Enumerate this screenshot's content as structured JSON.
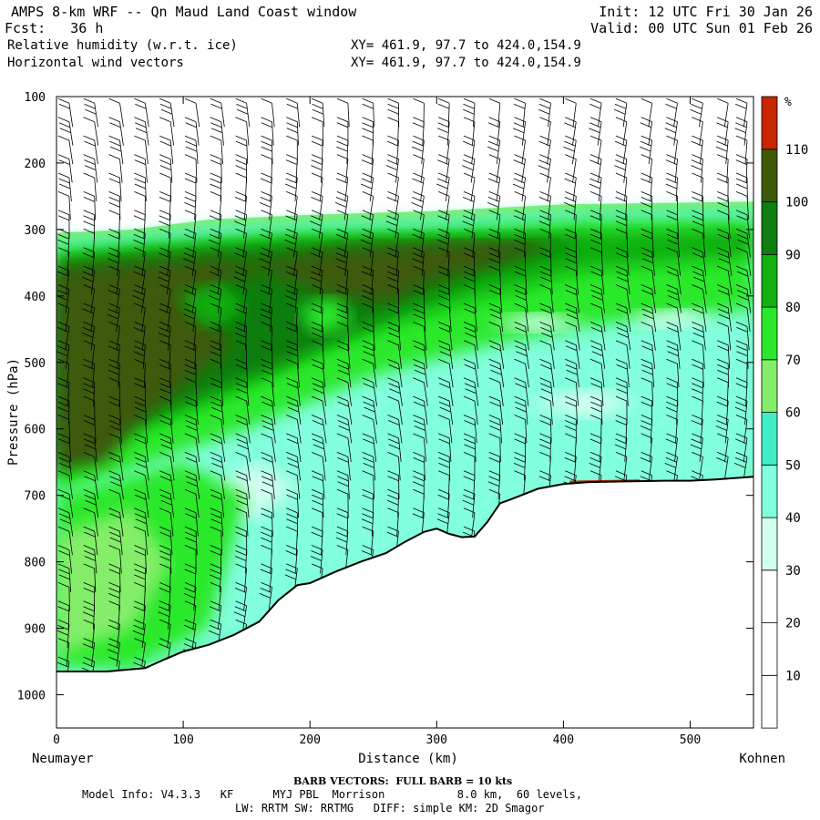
{
  "header": {
    "title": "AMPS 8-km WRF -- Qn Maud Land Coast window",
    "fcst": "Fcst:   36 h",
    "init": "Init: 12 UTC Fri 30 Jan 26",
    "valid": "Valid: 00 UTC Sun 01 Feb 26",
    "field1": "Relative humidity (w.r.t. ice)",
    "field2": "Horizontal wind vectors",
    "xy1": "XY= 461.9, 97.7 to 424.0,154.9",
    "xy2": "XY= 461.9, 97.7 to 424.0,154.9"
  },
  "footer": {
    "barb_note": "BARB VECTORS:  FULL BARB = 10 kts",
    "model_info": "Model Info: V4.3.3   KF      MYJ PBL  Morrison           8.0 km,  60 levels,",
    "model_info2": "LW: RRTM SW: RRTMG   DIFF: simple KM: 2D Smagor"
  },
  "chart_data": {
    "type": "heatmap",
    "title": "Relative humidity (w.r.t. ice)",
    "xlabel": "Distance (km)",
    "ylabel": "Pressure (hPa)",
    "xlim": [
      0,
      550
    ],
    "ylim": [
      1050,
      100
    ],
    "xticks": [
      0,
      100,
      200,
      300,
      400,
      500
    ],
    "yticks": [
      100,
      200,
      300,
      400,
      500,
      600,
      700,
      800,
      900,
      1000
    ],
    "x_endpoints": {
      "left": "Neumayer",
      "right": "Kohnen"
    },
    "colorbar": {
      "unit": "%",
      "levels": [
        10,
        20,
        30,
        40,
        50,
        60,
        70,
        80,
        90,
        100,
        110
      ],
      "colors": [
        "#ffffff",
        "#ffffff",
        "#ffffff",
        "#d2fff0",
        "#82ffdc",
        "#40eec8",
        "#84ee6a",
        "#2ce82c",
        "#10b010",
        "#0f7d0f",
        "#3e5a09",
        "#c82600"
      ]
    },
    "terrain_profile": {
      "x_km": [
        0,
        40,
        70,
        85,
        100,
        120,
        140,
        160,
        175,
        190,
        200,
        220,
        240,
        260,
        275,
        290,
        300,
        310,
        320,
        330,
        340,
        350,
        360,
        380,
        400,
        420,
        450,
        480,
        500,
        520,
        550
      ],
      "surface_hPa": [
        965,
        965,
        960,
        947,
        935,
        925,
        910,
        890,
        858,
        835,
        832,
        815,
        800,
        787,
        770,
        755,
        750,
        758,
        763,
        762,
        740,
        712,
        705,
        690,
        683,
        680,
        679,
        678,
        678,
        676,
        672
      ]
    },
    "humidity_layers": [
      {
        "range_percent": "90-100",
        "location": "upper moist layer, ~300-450 hPa, descending toward 550 hPa near Neumayer"
      },
      {
        "range_percent": "100-110",
        "location": "thick lower-left region, 350-650 hPa near x=0-120 km and a tongue 320-420 hPa near x=220-360 km"
      },
      {
        "range_percent": "30-50",
        "location": "drier mid-levels, 400-700 hPa over x=150-550 km"
      },
      {
        "range_percent": "110+",
        "location": "thin strip near surface around x=410-460 km"
      }
    ],
    "wind_barbs": {
      "full_barb_kts": 10,
      "columns_x_km": [
        10,
        30,
        50,
        70,
        90,
        110,
        130,
        150,
        170,
        190,
        210,
        230,
        250,
        270,
        290,
        310,
        330,
        350,
        370,
        390,
        410,
        430,
        450,
        470,
        490,
        510,
        530,
        545
      ]
    }
  }
}
